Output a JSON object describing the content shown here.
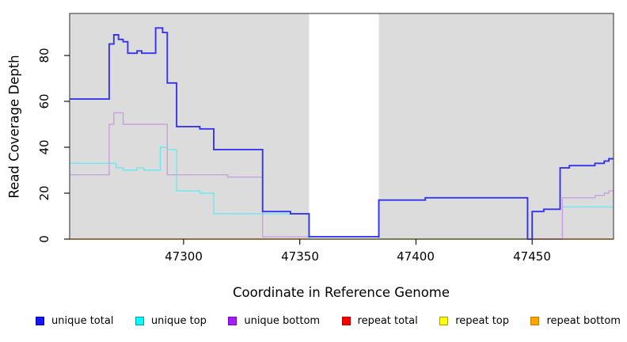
{
  "chart_data": {
    "type": "line",
    "step": true,
    "title": "",
    "xlabel": "Coordinate in Reference Genome",
    "ylabel": "Read Coverage Depth",
    "xlim": [
      47251,
      47485
    ],
    "ylim": [
      0,
      98.3
    ],
    "x_ticks": [
      47300,
      47350,
      47400,
      47450
    ],
    "y_ticks": [
      0,
      20,
      40,
      60,
      80
    ],
    "grid": false,
    "plot_bg": "#dcdcdc",
    "border_color": "#4c4c4c",
    "tick_color": "#000000",
    "masked_region": {
      "x_start": 47354,
      "x_end": 47384,
      "color": "#ffffff"
    },
    "series": [
      {
        "name": "unique total",
        "color": "#3434f0",
        "segments": [
          [
            [
              47251,
              61
            ],
            [
              47268,
              85
            ],
            [
              47270,
              89
            ],
            [
              47272,
              87
            ],
            [
              47274,
              86
            ],
            [
              47276,
              81
            ],
            [
              47280,
              82
            ],
            [
              47282,
              81
            ],
            [
              47288,
              92
            ],
            [
              47291,
              90
            ],
            [
              47293,
              68
            ],
            [
              47297,
              49
            ],
            [
              47307,
              48
            ],
            [
              47313,
              39
            ],
            [
              47334,
              12
            ],
            [
              47346,
              11
            ],
            [
              47354,
              1
            ],
            [
              47384,
              17
            ],
            [
              47404,
              18
            ],
            [
              47448,
              0
            ],
            [
              47450,
              12
            ],
            [
              47455,
              13
            ],
            [
              47462,
              31
            ],
            [
              47466,
              32
            ],
            [
              47477,
              33
            ],
            [
              47481,
              34
            ],
            [
              47483,
              35
            ],
            [
              47485,
              35
            ]
          ]
        ]
      },
      {
        "name": "unique top",
        "color": "#6fe6f1",
        "segments": [
          [
            [
              47251,
              33
            ],
            [
              47271,
              31
            ],
            [
              47274,
              30
            ],
            [
              47280,
              31
            ],
            [
              47283,
              30
            ],
            [
              47290,
              40
            ],
            [
              47293,
              39
            ],
            [
              47297,
              21
            ],
            [
              47307,
              20
            ],
            [
              47313,
              11
            ],
            [
              47354,
              11
            ],
            [
              47354,
              0
            ]
          ],
          [
            [
              47463,
              0
            ],
            [
              47463,
              14
            ],
            [
              47485,
              14
            ]
          ]
        ]
      },
      {
        "name": "unique bottom",
        "color": "#c9a0e2",
        "segments": [
          [
            [
              47251,
              28
            ],
            [
              47268,
              50
            ],
            [
              47270,
              55
            ],
            [
              47274,
              50
            ],
            [
              47293,
              28
            ],
            [
              47319,
              27
            ],
            [
              47334,
              1
            ],
            [
              47384,
              1
            ],
            [
              47384,
              0
            ]
          ],
          [
            [
              47463,
              0
            ],
            [
              47463,
              18
            ],
            [
              47477,
              19
            ],
            [
              47481,
              20
            ],
            [
              47483,
              21
            ],
            [
              47485,
              21
            ]
          ]
        ]
      },
      {
        "name": "repeat total",
        "color": "#e83030",
        "segments": [
          [
            [
              47251,
              0
            ],
            [
              47485,
              0
            ]
          ]
        ]
      },
      {
        "name": "repeat top",
        "color": "#f5e400",
        "segments": [
          [
            [
              47251,
              0
            ],
            [
              47485,
              0
            ]
          ]
        ]
      },
      {
        "name": "repeat bottom",
        "color": "#ff9e2a",
        "segments": [
          [
            [
              47251,
              0
            ],
            [
              47354,
              0
            ]
          ],
          [
            [
              47463,
              0
            ],
            [
              47485,
              0
            ]
          ]
        ]
      }
    ],
    "extra_segments": [
      {
        "name": "baseline-green",
        "color": "#8fc98f",
        "segments": [
          [
            [
              47354,
              0
            ],
            [
              47448,
              0
            ]
          ]
        ]
      },
      {
        "name": "overlap-magenta",
        "color": "#c2417d",
        "segments": [
          [
            [
              47450,
              0
            ],
            [
              47463,
              0
            ]
          ]
        ]
      }
    ],
    "paint_order": [
      "repeat total",
      "repeat top",
      "baseline-green",
      "overlap-magenta",
      "repeat bottom",
      "unique top",
      "unique bottom",
      "unique total"
    ]
  },
  "legend": {
    "position": "bottom",
    "items": [
      {
        "label": "unique total",
        "swatch": "#1414ff",
        "border": "#0000b0"
      },
      {
        "label": "unique top",
        "swatch": "#00ffff",
        "border": "#009aaa"
      },
      {
        "label": "unique bottom",
        "swatch": "#a020f0",
        "border": "#7a00c8"
      },
      {
        "label": "repeat total",
        "swatch": "#ff0000",
        "border": "#b00000"
      },
      {
        "label": "repeat top",
        "swatch": "#ffff00",
        "border": "#a0a000"
      },
      {
        "label": "repeat bottom",
        "swatch": "#ffa500",
        "border": "#c87800"
      }
    ]
  }
}
